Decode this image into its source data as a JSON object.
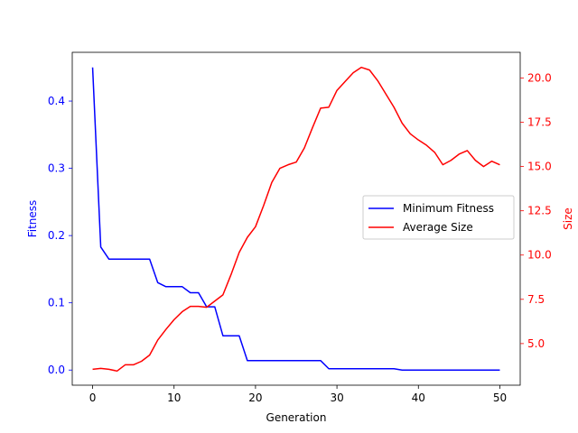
{
  "chart_data": {
    "type": "line",
    "title": "",
    "xlabel": "Generation",
    "ylabel_left": "Fitness",
    "ylabel_right": "Size",
    "xlim": [
      -2.5,
      52.5
    ],
    "ylim_left": [
      -0.0225,
      0.4725
    ],
    "ylim_right": [
      2.65,
      21.45
    ],
    "x_ticks": [
      0,
      10,
      20,
      30,
      40,
      50
    ],
    "y_left_ticks": [
      "0.0",
      "0.1",
      "0.2",
      "0.3",
      "0.4"
    ],
    "y_right_ticks": [
      "5.0",
      "7.5",
      "10.0",
      "12.5",
      "15.0",
      "17.5",
      "20.0"
    ],
    "legend_location": "center-right",
    "grid": false,
    "x": [
      0,
      1,
      2,
      3,
      4,
      5,
      6,
      7,
      8,
      9,
      10,
      11,
      12,
      13,
      14,
      15,
      16,
      17,
      18,
      19,
      20,
      21,
      22,
      23,
      24,
      25,
      26,
      27,
      28,
      29,
      30,
      31,
      32,
      33,
      34,
      35,
      36,
      37,
      38,
      39,
      40,
      41,
      42,
      43,
      44,
      45,
      46,
      47,
      48,
      49,
      50
    ],
    "series": [
      {
        "name": "Minimum Fitness",
        "axis": "left",
        "color": "#0000ff",
        "values": [
          0.45,
          0.183,
          0.165,
          0.165,
          0.165,
          0.165,
          0.165,
          0.165,
          0.13,
          0.124,
          0.124,
          0.124,
          0.115,
          0.115,
          0.094,
          0.094,
          0.051,
          0.051,
          0.051,
          0.014,
          0.014,
          0.014,
          0.014,
          0.014,
          0.014,
          0.014,
          0.014,
          0.014,
          0.014,
          0.002,
          0.002,
          0.002,
          0.002,
          0.002,
          0.002,
          0.002,
          0.002,
          0.002,
          0.0,
          0.0,
          0.0,
          0.0,
          0.0,
          0.0,
          0.0,
          0.0,
          0.0,
          0.0,
          0.0,
          0.0,
          0.0
        ]
      },
      {
        "name": "Average Size",
        "axis": "right",
        "color": "#ff0000",
        "values": [
          3.55,
          3.6,
          3.55,
          3.45,
          3.8,
          3.8,
          4.0,
          4.35,
          5.2,
          5.8,
          6.35,
          6.8,
          7.1,
          7.1,
          7.05,
          7.4,
          7.75,
          8.9,
          10.15,
          11.0,
          11.6,
          12.8,
          14.1,
          14.9,
          15.1,
          15.25,
          16.05,
          17.2,
          18.3,
          18.35,
          19.3,
          19.8,
          20.3,
          20.6,
          20.45,
          19.85,
          19.1,
          18.35,
          17.45,
          16.85,
          16.5,
          16.2,
          15.8,
          15.1,
          15.35,
          15.7,
          15.9,
          15.35,
          15.0,
          15.3,
          15.1
        ]
      }
    ],
    "colors": {
      "left_axis": "#0000ff",
      "right_axis": "#ff0000",
      "spine": "#000000",
      "legend_border": "#cccccc"
    }
  }
}
